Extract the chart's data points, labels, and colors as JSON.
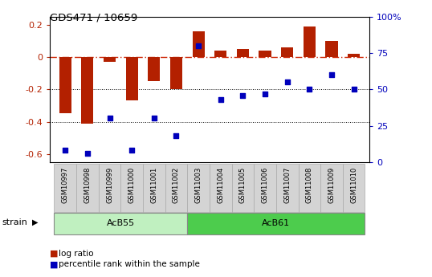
{
  "title": "GDS471 / 10659",
  "samples": [
    "GSM10997",
    "GSM10998",
    "GSM10999",
    "GSM11000",
    "GSM11001",
    "GSM11002",
    "GSM11003",
    "GSM11004",
    "GSM11005",
    "GSM11006",
    "GSM11007",
    "GSM11008",
    "GSM11009",
    "GSM11010"
  ],
  "log_ratio": [
    -0.35,
    -0.41,
    -0.03,
    -0.27,
    -0.15,
    -0.2,
    0.16,
    0.04,
    0.05,
    0.04,
    0.06,
    0.19,
    0.1,
    0.02
  ],
  "percentile": [
    8,
    6,
    30,
    8,
    30,
    18,
    80,
    43,
    46,
    47,
    55,
    50,
    60,
    50
  ],
  "groups": [
    {
      "label": "AcB55",
      "start": 0,
      "end": 5,
      "color_light": "#c8f5c8",
      "color_dark": "#5cd65c"
    },
    {
      "label": "AcB61",
      "start": 6,
      "end": 13,
      "color_light": "#5cd65c",
      "color_dark": "#32c832"
    }
  ],
  "strain_label": "strain",
  "ylim_left": [
    -0.65,
    0.25
  ],
  "ylim_right": [
    0,
    100
  ],
  "right_ticks": [
    0,
    25,
    50,
    75,
    100
  ],
  "right_tick_labels": [
    "0",
    "25",
    "50",
    "75",
    "100%"
  ],
  "left_ticks": [
    -0.6,
    -0.4,
    -0.2,
    0.0,
    0.2
  ],
  "bar_color": "#b32000",
  "dot_color": "#0000bb",
  "hline_color": "#cc2200",
  "dotted_line_color": "#000000",
  "cell_bg_color": "#d4d4d4",
  "cell_border_color": "#aaaaaa",
  "group1_color": "#c0f0c0",
  "group2_color": "#4dcc4d"
}
